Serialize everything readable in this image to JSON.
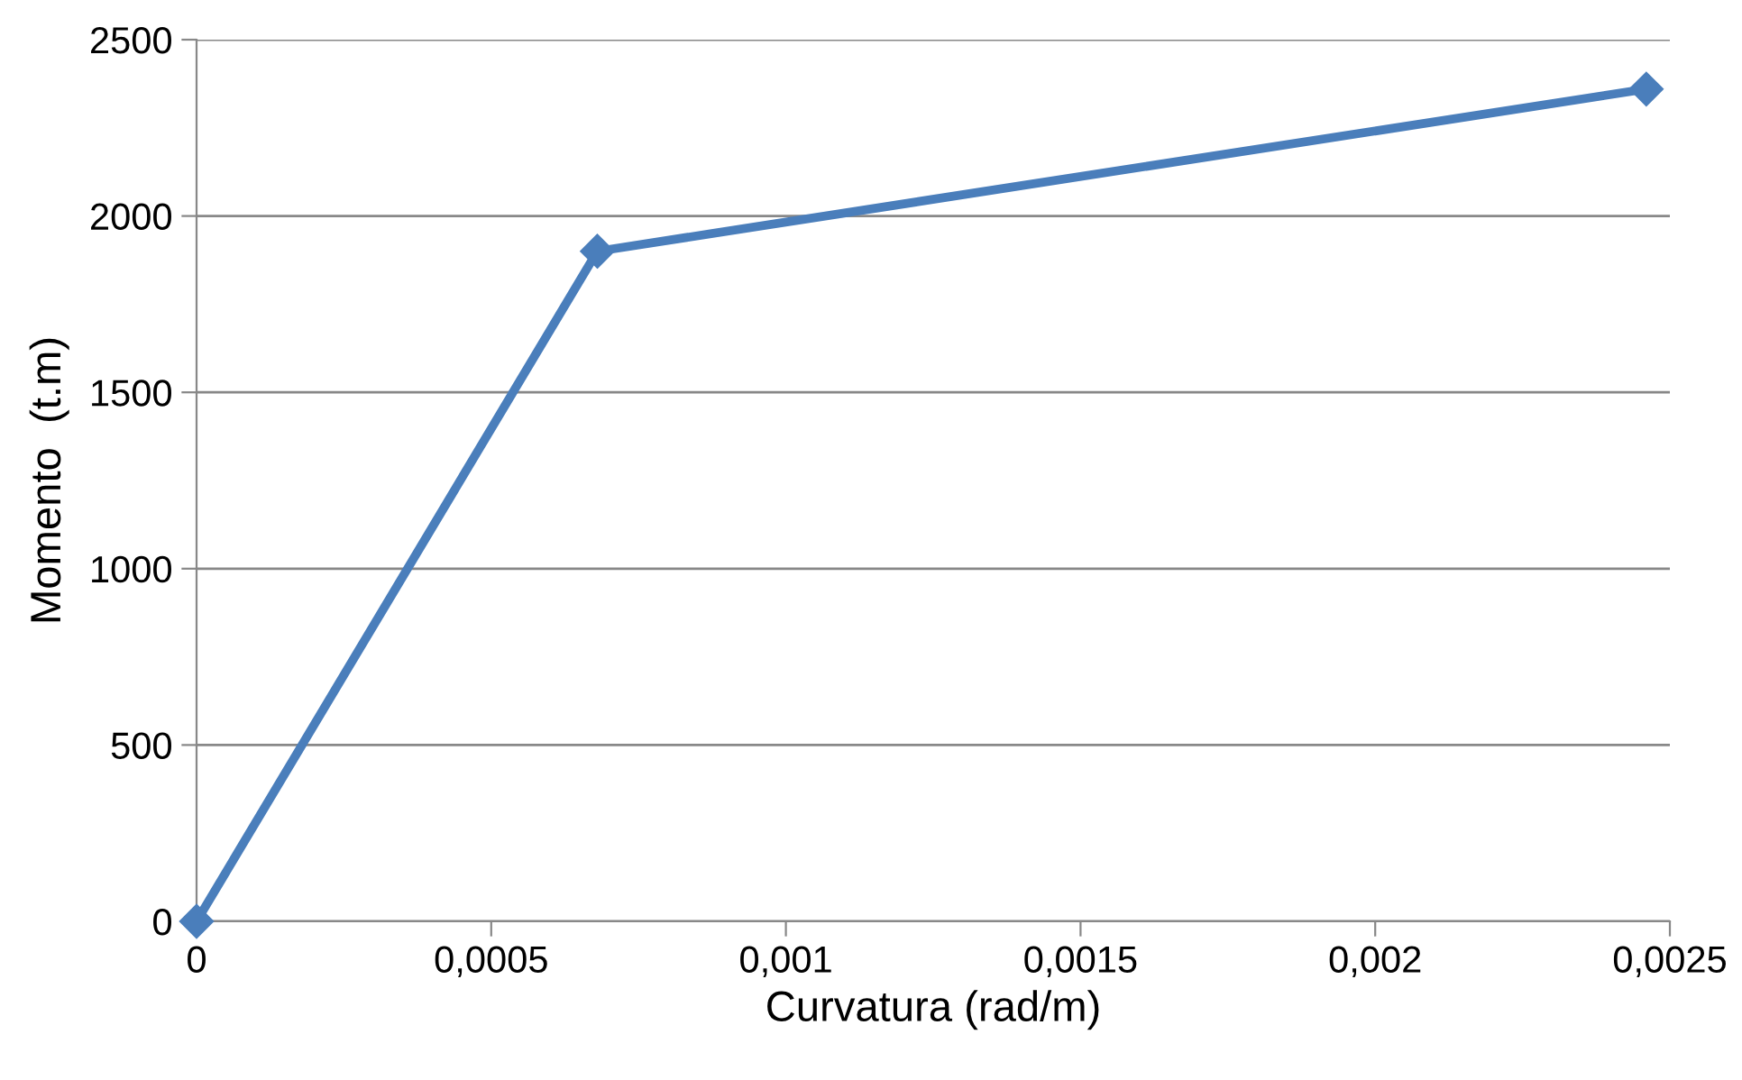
{
  "chart_data": {
    "type": "line",
    "xlabel": "Curvatura (rad/m)",
    "ylabel": "Momento  (t.m)",
    "x": [
      0,
      0.00068,
      0.00246
    ],
    "series": [
      {
        "color": "#4a7ebb",
        "values": [
          0,
          1900,
          2360
        ]
      }
    ],
    "xlim": [
      0,
      0.0025
    ],
    "xticks": [
      0,
      {
        "value": 0.0005,
        "label": "0,0005"
      },
      {
        "value": 0.001,
        "label": "0,001"
      },
      {
        "value": 0.0015,
        "label": "0,0015"
      },
      {
        "value": 0.002,
        "label": "0,002"
      },
      {
        "value": 0.0025,
        "label": "0,0025"
      }
    ],
    "ylim": [
      0,
      2500
    ],
    "yticks": [
      0,
      500,
      1000,
      1500,
      2000,
      2500
    ],
    "grid": "y",
    "marker": "diamond",
    "line_style": "solid"
  }
}
